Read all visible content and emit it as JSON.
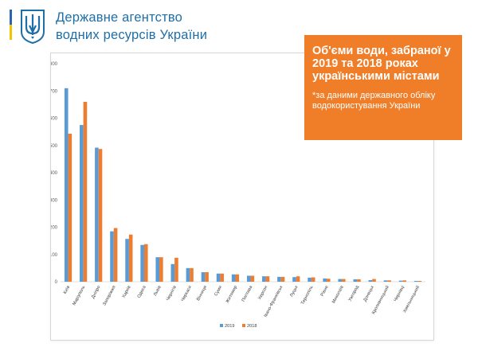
{
  "organization": {
    "line1": "Державне агентство",
    "line2": "водних ресурсів України"
  },
  "info_box": {
    "title": "Об'єми води, забраної у 2019 та 2018 роках українськими містами",
    "note": "*за даними державного обліку водокористування України",
    "background": "#f07d28"
  },
  "colors": {
    "brand_blue": "#1e6fa8",
    "flag_blue": "#2b63b5",
    "flag_yellow": "#f5c400"
  },
  "chart_data": {
    "type": "bar",
    "categories": [
      "Київ",
      "Маріуполь",
      "Дніпро",
      "Запоріжжя",
      "Харків",
      "Одеса",
      "Львів",
      "Чернігів",
      "Черкаси",
      "Вінниця",
      "Суми",
      "Житомир",
      "Полтава",
      "Херсон",
      "Івано-Франківськ",
      "Луцьк",
      "Тернопіль",
      "Рівне",
      "Миколаїв",
      "Ужгород",
      "Донецьк",
      "Кропивницький",
      "Чернівці",
      "Хмельницький"
    ],
    "series": [
      {
        "name": "2019",
        "color": "#5b9bd5",
        "values": [
          710,
          575,
          492,
          185,
          157,
          135,
          90,
          65,
          50,
          35,
          30,
          27,
          22,
          20,
          18,
          17,
          15,
          12,
          10,
          9,
          6,
          5,
          4,
          3
        ]
      },
      {
        "name": "2018",
        "color": "#ed7d31",
        "values": [
          543,
          660,
          487,
          197,
          173,
          138,
          90,
          88,
          50,
          35,
          30,
          27,
          22,
          20,
          18,
          20,
          16,
          11,
          10,
          9,
          10,
          5,
          5,
          3
        ]
      }
    ],
    "yticks": [
      0,
      100,
      200,
      300,
      400,
      500,
      600,
      700,
      800
    ],
    "ylim": [
      0,
      800
    ],
    "grid": false,
    "legend": "bottom"
  }
}
